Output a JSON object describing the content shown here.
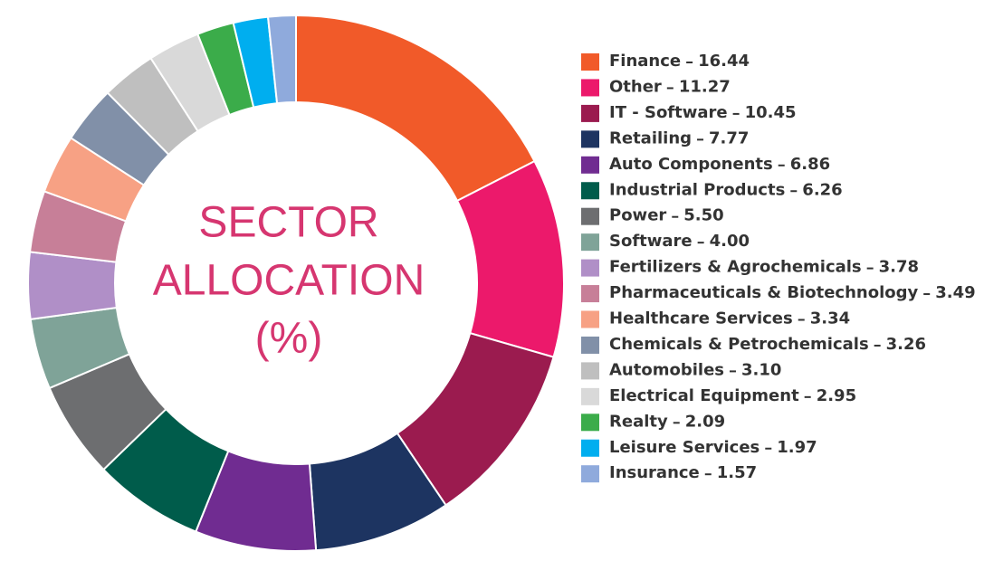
{
  "chart_data": {
    "type": "donut",
    "center_label": [
      "SECTOR",
      "ALLOCATION",
      "(%)"
    ],
    "categories": [
      "Finance",
      "Other",
      "IT - Software",
      "Retailing",
      "Auto Components",
      "Industrial Products",
      "Power",
      "Software",
      "Fertilizers & Agrochemicals",
      "Pharmaceuticals & Biotechnology",
      "Healthcare Services",
      "Chemicals & Petrochemicals",
      "Automobiles",
      "Electrical Equipment",
      "Realty",
      "Leisure Services",
      "Insurance"
    ],
    "values": [
      16.44,
      11.27,
      10.45,
      7.77,
      6.86,
      6.26,
      5.5,
      4.0,
      3.78,
      3.49,
      3.34,
      3.26,
      3.1,
      2.95,
      2.09,
      1.97,
      1.57
    ],
    "value_labels": [
      "16.44",
      "11.27",
      "10.45",
      "7.77",
      "6.86",
      "6.26",
      "5.50",
      "4.00",
      "3.78",
      "3.49",
      "3.34",
      "3.26",
      "3.10",
      "2.95",
      "2.09",
      "1.97",
      "1.57"
    ],
    "colors": [
      "#f15a29",
      "#ec196b",
      "#9b1b4f",
      "#1d3461",
      "#702c91",
      "#005c4b",
      "#6d6e70",
      "#7fa398",
      "#b08fc7",
      "#c77f98",
      "#f7a184",
      "#8190a8",
      "#bfbfbf",
      "#d9d9d9",
      "#3bac4a",
      "#00aeef",
      "#8faadc"
    ]
  }
}
